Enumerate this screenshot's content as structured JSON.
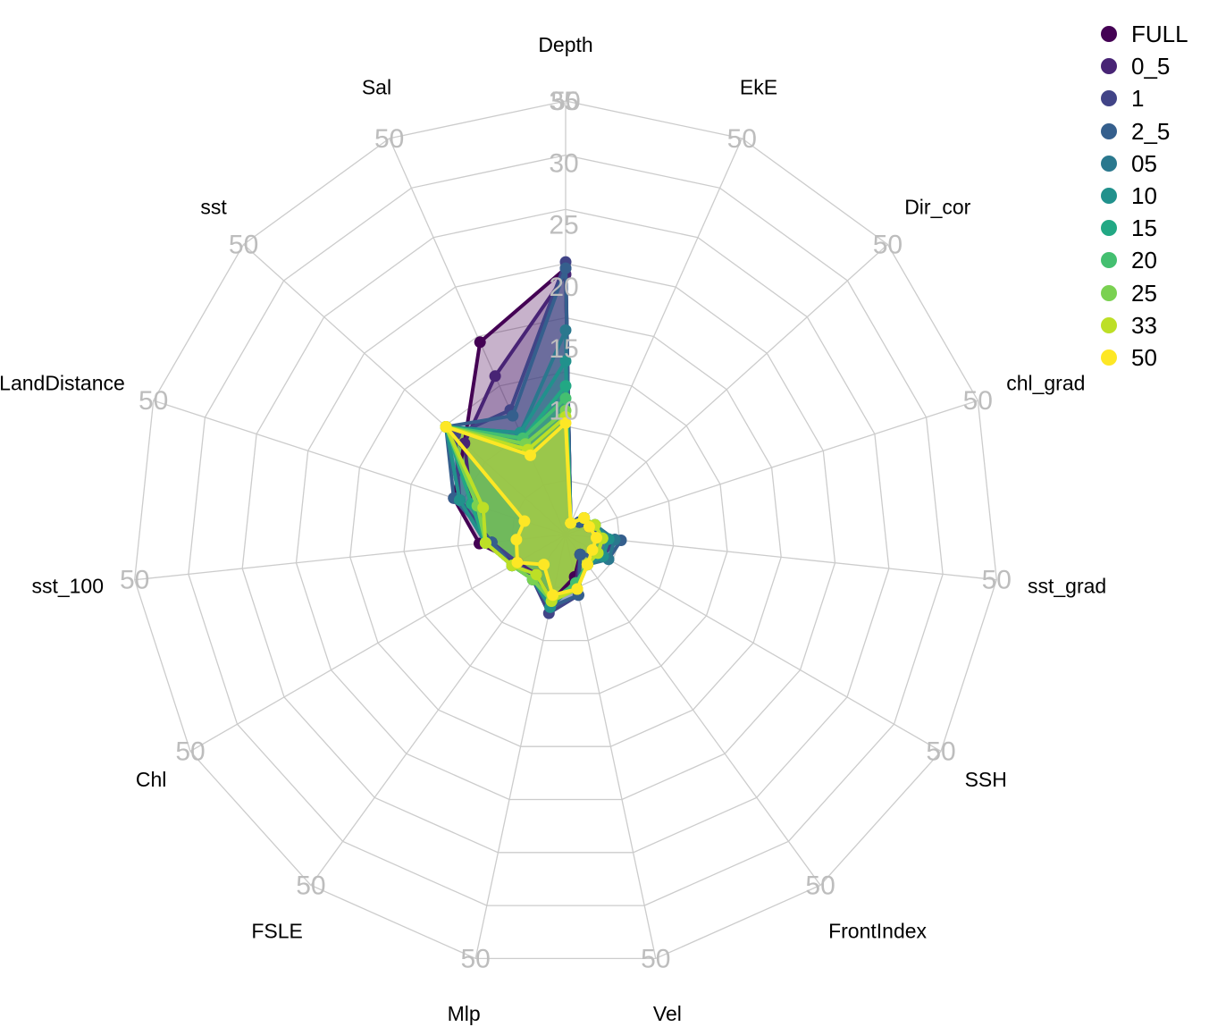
{
  "chart_data": {
    "type": "radar",
    "axes": [
      "Depth",
      "EkE",
      "Dir_cor",
      "chl_grad",
      "sst_grad",
      "SSH",
      "FrontIndex",
      "Vel",
      "Mlp",
      "FSLE",
      "Chl",
      "sst_100",
      "LandDistance",
      "sst",
      "Sal"
    ],
    "max_value": 35,
    "axis_max_label": "50",
    "radial_tick_labels": [
      "10",
      "15",
      "20",
      "25",
      "30",
      "35"
    ],
    "grid": true,
    "legend_position": "top-right",
    "series": [
      {
        "name": "FULL",
        "color": "#440154",
        "values": [
          21.5,
          1.0,
          1.5,
          2.0,
          4.0,
          3.5,
          2.0,
          3.5,
          5.5,
          4.0,
          4.5,
          7.0,
          9.5,
          11.0,
          17.0
        ]
      },
      {
        "name": "0_5",
        "color": "#482475",
        "values": [
          21.0,
          1.0,
          1.5,
          2.0,
          4.0,
          3.5,
          2.0,
          4.0,
          5.5,
          4.0,
          4.5,
          6.5,
          8.0,
          11.0,
          14.0
        ]
      },
      {
        "name": "1",
        "color": "#414487",
        "values": [
          22.0,
          1.0,
          1.5,
          2.0,
          4.0,
          3.5,
          2.0,
          5.0,
          6.5,
          4.5,
          4.5,
          6.0,
          9.0,
          12.0,
          11.0
        ]
      },
      {
        "name": "2_5",
        "color": "#355F8D",
        "values": [
          21.5,
          1.0,
          1.5,
          2.0,
          4.5,
          4.0,
          2.0,
          5.0,
          6.0,
          4.5,
          5.0,
          6.0,
          9.5,
          13.0,
          10.5
        ]
      },
      {
        "name": "05",
        "color": "#2A788E",
        "values": [
          16.5,
          1.0,
          2.0,
          2.5,
          4.0,
          4.0,
          3.0,
          4.0,
          6.0,
          4.5,
          5.0,
          6.5,
          9.0,
          13.0,
          9.0
        ]
      },
      {
        "name": "10",
        "color": "#21918C",
        "values": [
          14.0,
          1.0,
          2.0,
          2.5,
          3.5,
          3.5,
          3.0,
          4.0,
          6.0,
          4.5,
          5.0,
          6.5,
          9.0,
          13.0,
          9.0
        ]
      },
      {
        "name": "15",
        "color": "#22A884",
        "values": [
          12.0,
          1.0,
          2.0,
          2.5,
          3.0,
          3.0,
          3.0,
          4.0,
          5.5,
          4.5,
          5.0,
          6.5,
          8.0,
          13.0,
          8.5
        ]
      },
      {
        "name": "20",
        "color": "#44BF70",
        "values": [
          11.0,
          1.0,
          2.0,
          2.5,
          3.0,
          3.0,
          3.0,
          4.0,
          5.5,
          4.5,
          5.0,
          6.5,
          7.5,
          13.0,
          8.5
        ]
      },
      {
        "name": "25",
        "color": "#7AD151",
        "values": [
          10.0,
          1.0,
          2.0,
          2.5,
          3.0,
          3.0,
          3.0,
          4.5,
          5.5,
          4.5,
          5.0,
          6.5,
          7.5,
          13.0,
          8.0
        ]
      },
      {
        "name": "33",
        "color": "#BDDF26",
        "values": [
          9.5,
          1.0,
          2.0,
          2.5,
          3.0,
          3.0,
          3.0,
          4.5,
          5.5,
          4.0,
          5.0,
          6.5,
          7.0,
          13.0,
          7.5
        ]
      },
      {
        "name": "50",
        "color": "#FDE725",
        "values": [
          9.0,
          1.0,
          2.0,
          2.0,
          2.5,
          2.5,
          3.0,
          4.5,
          5.0,
          3.0,
          4.5,
          4.0,
          3.5,
          13.0,
          7.0
        ]
      }
    ]
  }
}
